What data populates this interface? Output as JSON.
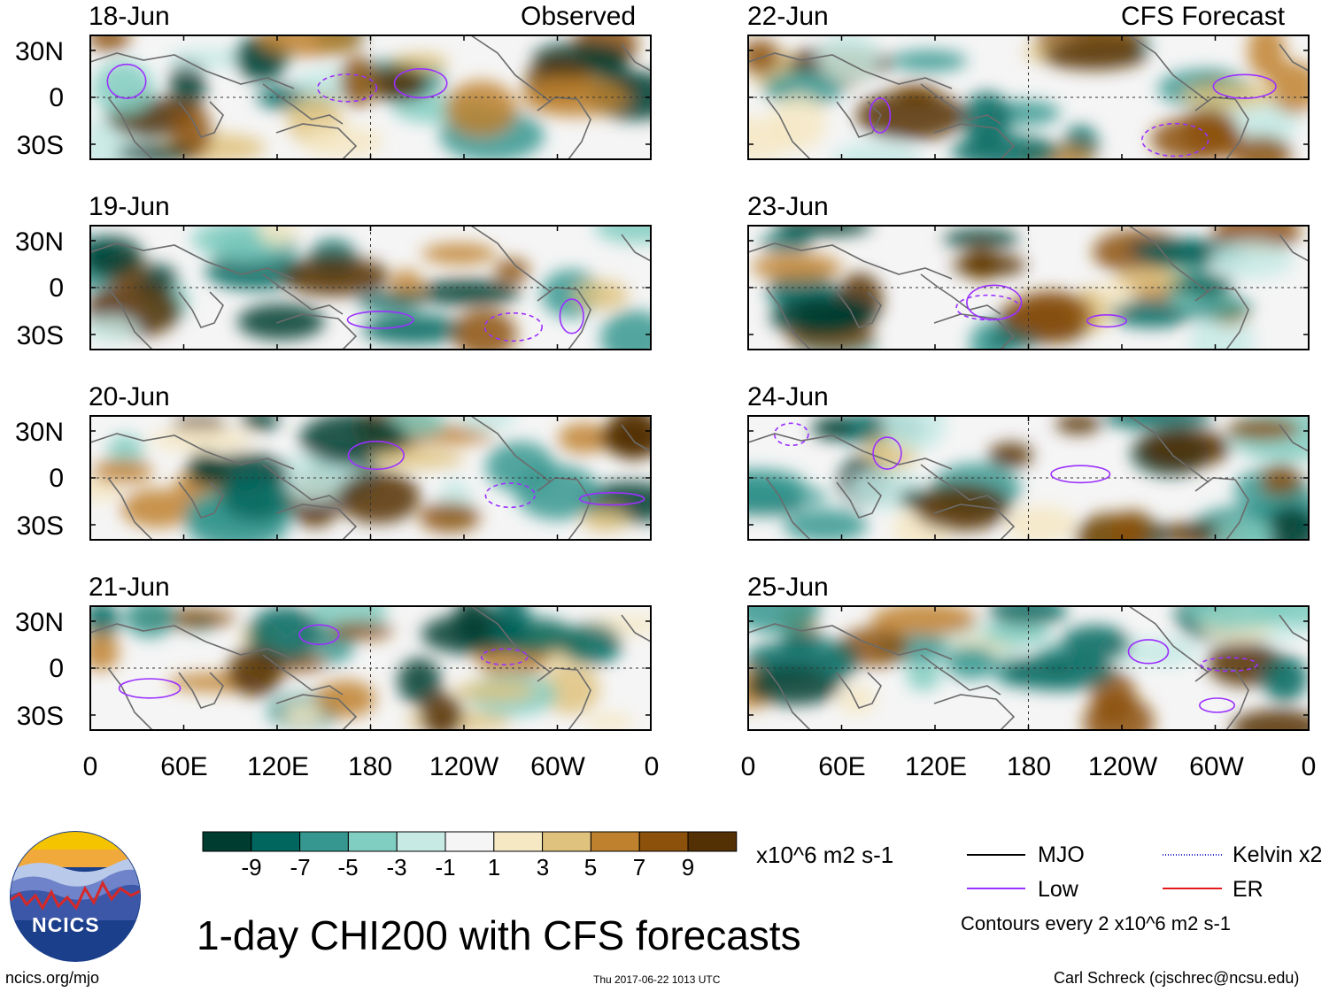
{
  "chart_data": {
    "type": "heatmap",
    "title": "1-day CHI200 with CFS forecasts",
    "variable": "CHI200",
    "units": "x10^6 m2 s-1",
    "columns": [
      {
        "heading": "Observed",
        "dates": [
          "18-Jun",
          "19-Jun",
          "20-Jun",
          "21-Jun"
        ]
      },
      {
        "heading": "CFS Forecast",
        "dates": [
          "22-Jun",
          "23-Jun",
          "24-Jun",
          "25-Jun"
        ]
      }
    ],
    "x_tick_labels": [
      "0",
      "60E",
      "120E",
      "180",
      "120W",
      "60W",
      "0"
    ],
    "y_tick_labels": [
      "30N",
      "0",
      "30S"
    ],
    "colorbar": {
      "tick_labels": [
        "-9",
        "-7",
        "-5",
        "-3",
        "-1",
        "1",
        "3",
        "5",
        "7",
        "9"
      ],
      "colors": [
        "#003c30",
        "#01665e",
        "#35978f",
        "#80cdc1",
        "#c7eae5",
        "#f5f5f5",
        "#f6e8c3",
        "#dfc27d",
        "#bf812d",
        "#8c510a",
        "#543005"
      ]
    },
    "contour_legend": [
      {
        "label": "MJO",
        "color": "#000000"
      },
      {
        "label": "Low",
        "color": "#9b30ff"
      },
      {
        "label": "Kelvin x2",
        "color": "#2a2acd"
      },
      {
        "label": "ER",
        "color": "#e31a1c"
      }
    ],
    "contour_note": "Contours every 2 x10^6 m2 s-1"
  },
  "logo": {
    "text": "NCICS"
  },
  "footer": {
    "url": "ncics.org/mjo",
    "timestamp": "Thu 2017-06-22 1013 UTC",
    "credit": "Carl Schreck (cjschrec@ncsu.edu)"
  }
}
